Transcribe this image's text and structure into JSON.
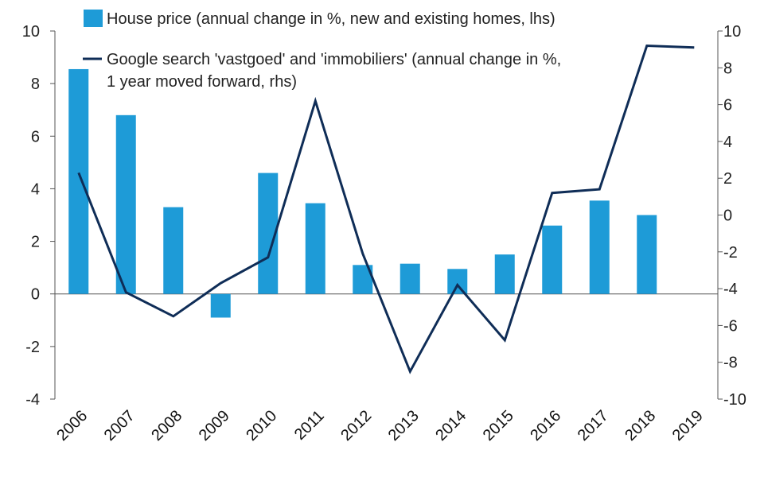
{
  "chart_data": {
    "type": "bar",
    "categories": [
      "2006",
      "2007",
      "2008",
      "2009",
      "2010",
      "2011",
      "2012",
      "2013",
      "2014",
      "2015",
      "2016",
      "2017",
      "2018",
      "2019"
    ],
    "series": [
      {
        "name": "House price (annual change in %, new and existing homes, lhs)",
        "type": "bar",
        "axis": "left",
        "color": "#1e9bd7",
        "values": [
          8.55,
          6.8,
          3.3,
          -0.9,
          4.6,
          3.45,
          1.1,
          1.15,
          0.95,
          1.5,
          2.6,
          3.55,
          3.0,
          null
        ]
      },
      {
        "name": "Google search 'vastgoed' and 'immobiliers' (annual change in %, 1 year moved forward, rhs)",
        "type": "line",
        "axis": "right",
        "color": "#0f2d57",
        "values": [
          2.3,
          -4.2,
          -5.5,
          -3.7,
          -2.3,
          6.2,
          -2.1,
          -8.5,
          -3.8,
          -6.8,
          1.2,
          1.4,
          9.2,
          9.1
        ]
      }
    ],
    "ylim_left": [
      -4,
      10
    ],
    "yticks_left": [
      -4,
      -2,
      0,
      2,
      4,
      6,
      8,
      10
    ],
    "ylim_right": [
      -10,
      10
    ],
    "yticks_right": [
      -10,
      -8,
      -6,
      -4,
      -2,
      0,
      2,
      4,
      6,
      8,
      10
    ],
    "legend": {
      "position": "top",
      "items": [
        "House price (annual change in %, new and existing homes, lhs)",
        "Google search 'vastgoed' and 'immobiliers' (annual change in %,",
        "1 year moved forward, rhs)"
      ]
    },
    "grid": false
  }
}
